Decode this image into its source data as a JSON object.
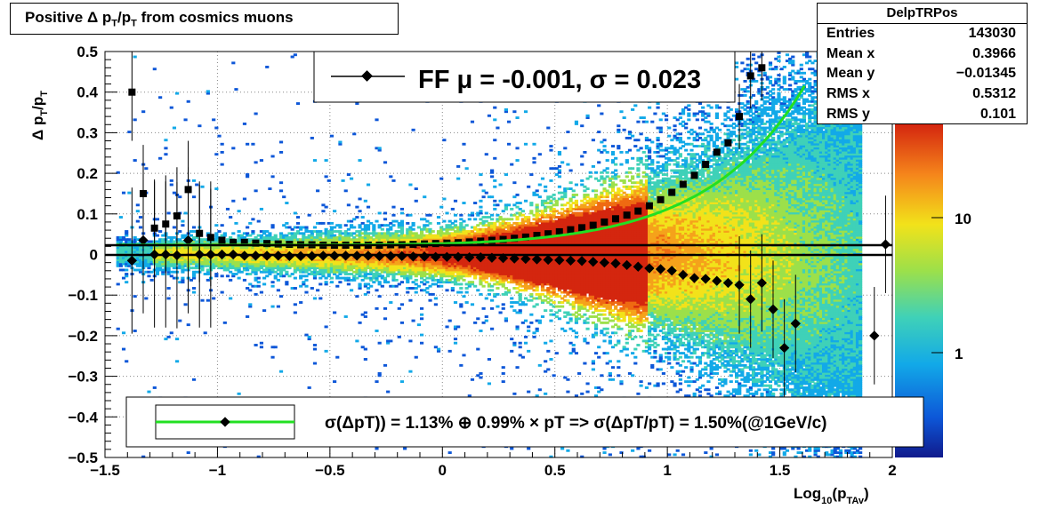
{
  "title": {
    "main": "Positive",
    "delta": "Δ",
    "p": "p",
    "sub": "T",
    "slash": "/p",
    "sub2": "T",
    "rest": "from cosmics muons"
  },
  "stats": {
    "name": "DelpTRPos",
    "rows": [
      {
        "label": "Entries",
        "value": "143030"
      },
      {
        "label": "Mean x",
        "value": "0.3966"
      },
      {
        "label": "Mean y",
        "value": "−0.01345"
      },
      {
        "label": "RMS x",
        "value": "0.5312"
      },
      {
        "label": "RMS y",
        "value": "0.101"
      }
    ]
  },
  "legend_top": "FF μ = -0.001, σ =   0.023",
  "legend_bottom": "σ(ΔpT)) =  1.13% ⊕  0.99% × pT => σ(ΔpT/pT) =  1.50%(@1GeV/c)",
  "colors": {
    "fit": "#22e022",
    "markers": "#000000"
  },
  "chart_data": {
    "type": "heatmap",
    "title": "Positive Δ pT/pT from cosmics muons",
    "xlabel": "Log10(pTAv)",
    "ylabel": "Δ pT/pT",
    "xlim": [
      -1.5,
      2.0
    ],
    "ylim": [
      -0.5,
      0.5
    ],
    "x_ticks": [
      "−1.5",
      "−1",
      "−0.5",
      "0",
      "0.5",
      "1",
      "1.5",
      "2"
    ],
    "y_ticks": [
      "−0.5",
      "−0.4",
      "−0.3",
      "−0.2",
      "−0.1",
      "0",
      "0.1",
      "0.2",
      "0.3",
      "0.4",
      "0.5"
    ],
    "z_ticks": [
      "1",
      "10"
    ],
    "grid": true,
    "sigma_series": [
      [
        -1.38,
        0.4
      ],
      [
        -1.33,
        0.15
      ],
      [
        -1.28,
        0.065
      ],
      [
        -1.23,
        0.075
      ],
      [
        -1.18,
        0.095
      ],
      [
        -1.13,
        0.16
      ],
      [
        -1.08,
        0.052
      ],
      [
        -1.03,
        0.042
      ],
      [
        -0.98,
        0.035
      ],
      [
        -0.93,
        0.03
      ],
      [
        -0.88,
        0.03
      ],
      [
        -0.83,
        0.028
      ],
      [
        -0.78,
        0.027
      ],
      [
        -0.73,
        0.026
      ],
      [
        -0.68,
        0.025
      ],
      [
        -0.63,
        0.024
      ],
      [
        -0.58,
        0.024
      ],
      [
        -0.53,
        0.023
      ],
      [
        -0.48,
        0.023
      ],
      [
        -0.43,
        0.023
      ],
      [
        -0.38,
        0.023
      ],
      [
        -0.33,
        0.023
      ],
      [
        -0.28,
        0.023
      ],
      [
        -0.23,
        0.024
      ],
      [
        -0.18,
        0.024
      ],
      [
        -0.13,
        0.025
      ],
      [
        -0.08,
        0.026
      ],
      [
        -0.03,
        0.027
      ],
      [
        0.02,
        0.028
      ],
      [
        0.07,
        0.029
      ],
      [
        0.12,
        0.031
      ],
      [
        0.17,
        0.033
      ],
      [
        0.22,
        0.035
      ],
      [
        0.27,
        0.037
      ],
      [
        0.32,
        0.04
      ],
      [
        0.37,
        0.043
      ],
      [
        0.42,
        0.047
      ],
      [
        0.47,
        0.051
      ],
      [
        0.52,
        0.056
      ],
      [
        0.57,
        0.061
      ],
      [
        0.62,
        0.066
      ],
      [
        0.67,
        0.072
      ],
      [
        0.72,
        0.08
      ],
      [
        0.77,
        0.088
      ],
      [
        0.82,
        0.097
      ],
      [
        0.87,
        0.107
      ],
      [
        0.92,
        0.12
      ],
      [
        0.97,
        0.135
      ],
      [
        1.02,
        0.153
      ],
      [
        1.07,
        0.173
      ],
      [
        1.12,
        0.195
      ],
      [
        1.17,
        0.222
      ],
      [
        1.22,
        0.252
      ],
      [
        1.27,
        0.275
      ],
      [
        1.32,
        0.34
      ],
      [
        1.37,
        0.44
      ],
      [
        1.42,
        0.46
      ]
    ],
    "mean_series": [
      [
        -1.38,
        -0.015
      ],
      [
        -1.33,
        0.035
      ],
      [
        -1.28,
        0.0
      ],
      [
        -1.23,
        0.0
      ],
      [
        -1.18,
        -0.002
      ],
      [
        -1.13,
        0.035
      ],
      [
        -1.08,
        0.0
      ],
      [
        -1.03,
        0.0
      ],
      [
        -0.98,
        0.0
      ],
      [
        -0.93,
        0.0
      ],
      [
        -0.88,
        -0.003
      ],
      [
        -0.83,
        -0.003
      ],
      [
        -0.78,
        -0.003
      ],
      [
        -0.73,
        -0.003
      ],
      [
        -0.68,
        -0.004
      ],
      [
        -0.63,
        -0.004
      ],
      [
        -0.58,
        -0.004
      ],
      [
        -0.53,
        -0.003
      ],
      [
        -0.48,
        -0.003
      ],
      [
        -0.43,
        -0.003
      ],
      [
        -0.38,
        -0.003
      ],
      [
        -0.33,
        -0.003
      ],
      [
        -0.28,
        -0.004
      ],
      [
        -0.23,
        -0.004
      ],
      [
        -0.18,
        -0.004
      ],
      [
        -0.13,
        -0.005
      ],
      [
        -0.08,
        -0.005
      ],
      [
        -0.03,
        -0.006
      ],
      [
        0.02,
        -0.006
      ],
      [
        0.07,
        -0.006
      ],
      [
        0.12,
        -0.007
      ],
      [
        0.17,
        -0.007
      ],
      [
        0.22,
        -0.008
      ],
      [
        0.27,
        -0.009
      ],
      [
        0.32,
        -0.01
      ],
      [
        0.37,
        -0.011
      ],
      [
        0.42,
        -0.012
      ],
      [
        0.47,
        -0.013
      ],
      [
        0.52,
        -0.014
      ],
      [
        0.57,
        -0.015
      ],
      [
        0.62,
        -0.016
      ],
      [
        0.67,
        -0.018
      ],
      [
        0.72,
        -0.02
      ],
      [
        0.77,
        -0.022
      ],
      [
        0.82,
        -0.026
      ],
      [
        0.87,
        -0.03
      ],
      [
        0.92,
        -0.034
      ],
      [
        0.97,
        -0.036
      ],
      [
        1.02,
        -0.04
      ],
      [
        1.07,
        -0.05
      ],
      [
        1.12,
        -0.058
      ],
      [
        1.17,
        -0.06
      ],
      [
        1.22,
        -0.065
      ],
      [
        1.27,
        -0.07
      ],
      [
        1.32,
        -0.075
      ],
      [
        1.37,
        -0.11
      ],
      [
        1.42,
        -0.07
      ],
      [
        1.47,
        -0.135
      ],
      [
        1.52,
        -0.23
      ],
      [
        1.57,
        -0.17
      ],
      [
        1.92,
        -0.2
      ],
      [
        1.97,
        0.025
      ]
    ],
    "fit_curve": {
      "a": 0.0113,
      "b": 0.0099,
      "offset": 0.012
    },
    "ref_lines": [
      0.023,
      -0.001
    ]
  }
}
